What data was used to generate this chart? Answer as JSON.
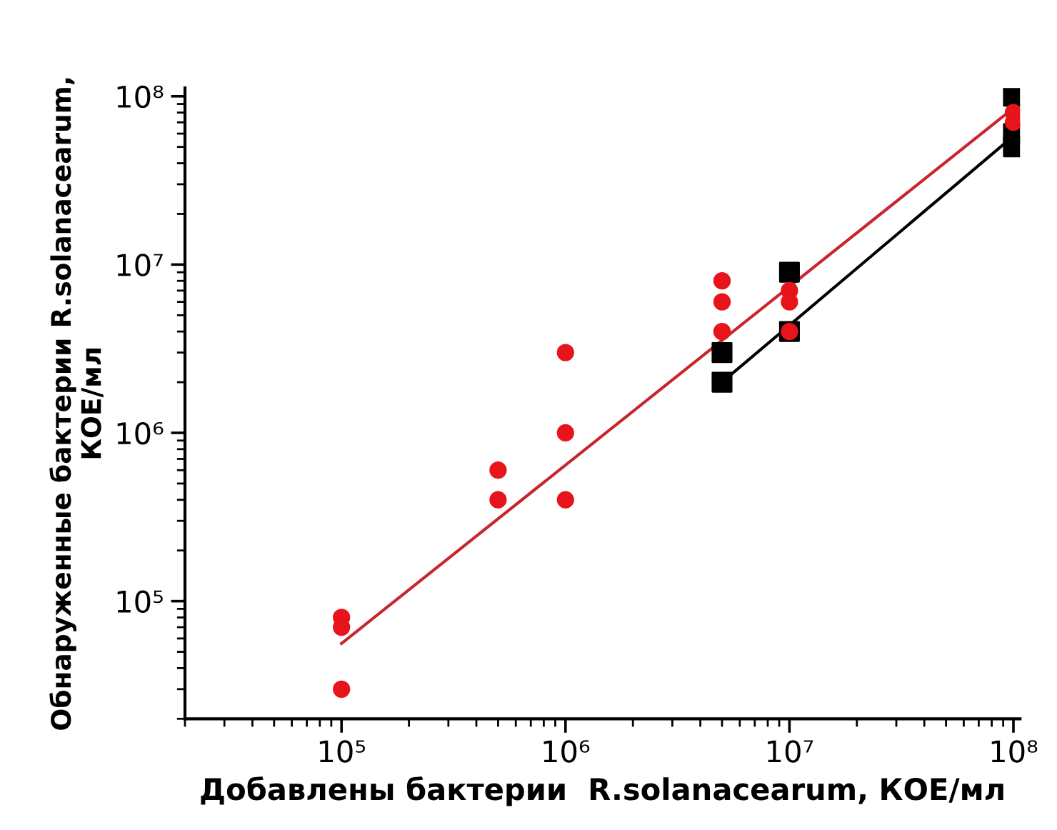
{
  "chart_data": {
    "type": "scatter",
    "log": "xy",
    "xlabel": "Добавлены бактерии  R.solanacearum, КОЕ/мл",
    "ylabel": "Обнаруженные бактерии R.solanacearum,\nКОЕ/мл",
    "xlim": [
      20000,
      107000000
    ],
    "ylim": [
      20000,
      112000000
    ],
    "xticks": [
      {
        "value": 100000,
        "label": "10⁵"
      },
      {
        "value": 1000000,
        "label": "10⁶"
      },
      {
        "value": 10000000,
        "label": "10⁷"
      },
      {
        "value": 100000000,
        "label": "10⁸"
      }
    ],
    "yticks": [
      {
        "value": 100000,
        "label": "10⁵"
      },
      {
        "value": 1000000,
        "label": "10⁶"
      },
      {
        "value": 10000000,
        "label": "10⁷"
      },
      {
        "value": 100000000,
        "label": "10⁸"
      }
    ],
    "grid": false,
    "legend": false,
    "series": [
      {
        "marker": "square",
        "color": "#000000",
        "x": [
          5000000,
          5000000,
          10000000,
          10000000,
          100000000,
          100000000,
          100000000
        ],
        "values": [
          3000000,
          2000000,
          9000000,
          4000000,
          100000000,
          60000000,
          50000000
        ]
      },
      {
        "marker": "circle",
        "color": "#e8141b",
        "x": [
          100000,
          100000,
          100000,
          500000,
          500000,
          1000000,
          1000000,
          1000000,
          5000000,
          5000000,
          5000000,
          10000000,
          10000000,
          10000000,
          100000000,
          100000000
        ],
        "values": [
          80000,
          70000,
          30000,
          600000,
          400000,
          3000000,
          1000000,
          400000,
          8000000,
          6000000,
          4000000,
          7000000,
          6000000,
          4000000,
          80000000,
          70000000
        ]
      },
      {
        "type": "line",
        "marker": "none",
        "color": "#000000",
        "x": [
          5000000,
          100000000
        ],
        "values": [
          2000000,
          58000000
        ]
      },
      {
        "type": "line",
        "marker": "none",
        "color": "#c8262c",
        "x": [
          100000,
          100000000
        ],
        "values": [
          56000,
          85000000
        ]
      }
    ]
  }
}
